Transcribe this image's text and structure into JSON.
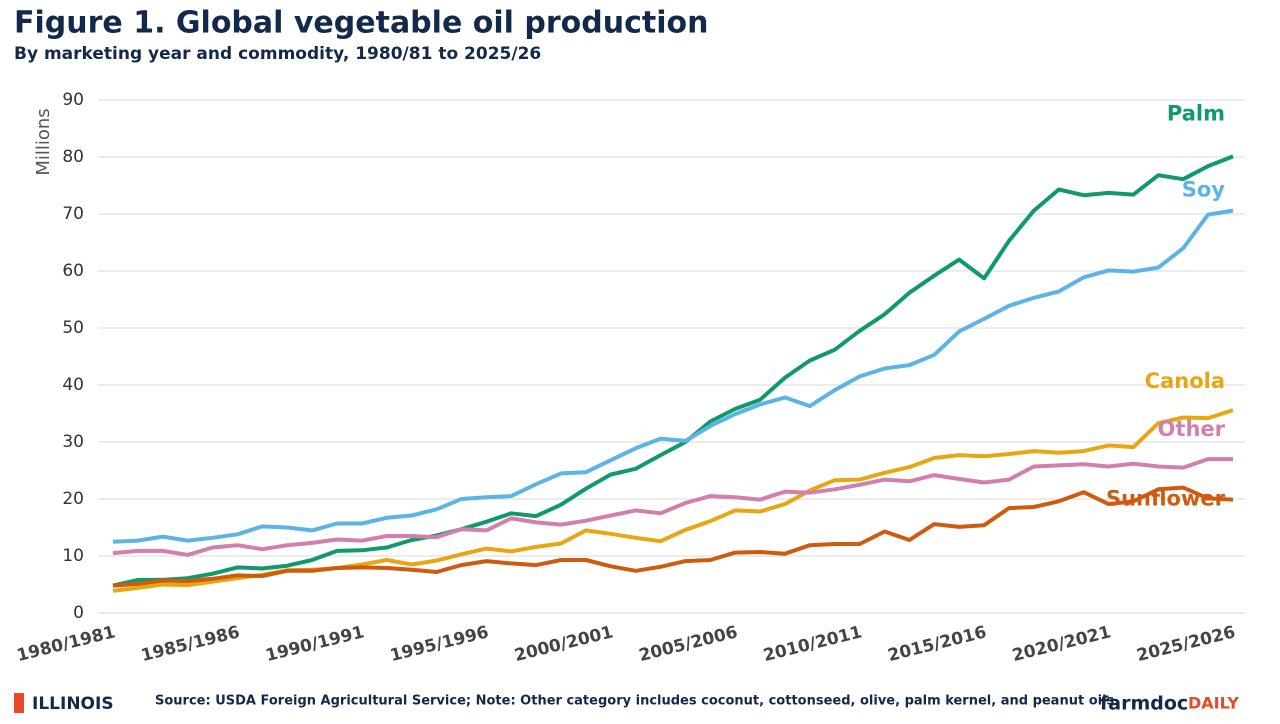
{
  "chart_data": {
    "type": "line",
    "title": "Figure 1. Global vegetable oil production",
    "subtitle": "By marketing year and commodity, 1980/81 to 2025/26",
    "y_label": "Millions",
    "categories": [
      "1980/1981",
      null,
      null,
      null,
      null,
      "1985/1986",
      null,
      null,
      null,
      null,
      "1990/1991",
      null,
      null,
      null,
      null,
      "1995/1996",
      null,
      null,
      null,
      null,
      "2000/2001",
      null,
      null,
      null,
      null,
      "2005/2006",
      null,
      null,
      null,
      null,
      "2010/2011",
      null,
      null,
      null,
      null,
      "2015/2016",
      null,
      null,
      null,
      null,
      "2020/2021",
      null,
      null,
      null,
      null,
      "2025/2026"
    ],
    "series": [
      {
        "name": "Palm",
        "color": "#0e9a6b",
        "values": [
          4.8,
          5.8,
          5.8,
          6.1,
          6.9,
          8.0,
          7.8,
          8.3,
          9.3,
          10.9,
          11.0,
          11.5,
          12.8,
          13.6,
          14.7,
          16.0,
          17.5,
          17.0,
          19.0,
          21.8,
          24.3,
          25.3,
          27.7,
          30.0,
          33.6,
          35.8,
          37.4,
          41.3,
          44.3,
          46.2,
          49.5,
          52.4,
          56.2,
          59.2,
          62.0,
          58.7,
          65.3,
          70.6,
          74.3,
          73.3,
          73.7,
          73.4,
          76.8,
          76.1,
          78.4,
          80.1
        ]
      },
      {
        "name": "Soy",
        "color": "#5bb4e5",
        "values": [
          12.5,
          12.7,
          13.4,
          12.7,
          13.2,
          13.8,
          15.2,
          15.0,
          14.5,
          15.7,
          15.7,
          16.7,
          17.1,
          18.2,
          20.0,
          20.3,
          20.5,
          22.6,
          24.5,
          24.7,
          26.8,
          28.9,
          30.6,
          30.2,
          32.8,
          34.9,
          36.6,
          37.8,
          36.3,
          39.1,
          41.5,
          42.9,
          43.5,
          45.3,
          49.4,
          51.6,
          53.9,
          55.3,
          56.4,
          58.9,
          60.1,
          59.9,
          60.6,
          64.0,
          69.9,
          70.6
        ]
      },
      {
        "name": "Canola",
        "color": "#e8a712",
        "values": [
          3.9,
          4.4,
          5.0,
          4.9,
          5.5,
          6.1,
          6.7,
          7.5,
          7.6,
          7.9,
          8.5,
          9.3,
          8.5,
          9.2,
          10.3,
          11.3,
          10.8,
          11.6,
          12.2,
          14.5,
          13.9,
          13.2,
          12.6,
          14.6,
          16.1,
          18.0,
          17.8,
          19.1,
          21.5,
          23.3,
          23.4,
          24.6,
          25.6,
          27.2,
          27.7,
          27.5,
          27.9,
          28.4,
          28.1,
          28.4,
          29.4,
          29.1,
          33.3,
          34.3,
          34.2,
          35.6
        ]
      },
      {
        "name": "Other",
        "color": "#d27fae",
        "values": [
          10.5,
          10.9,
          10.9,
          10.2,
          11.5,
          11.9,
          11.2,
          11.9,
          12.3,
          12.9,
          12.7,
          13.5,
          13.5,
          13.3,
          14.7,
          14.5,
          16.6,
          15.9,
          15.5,
          16.2,
          17.1,
          18.0,
          17.5,
          19.3,
          20.5,
          20.3,
          19.9,
          21.3,
          21.1,
          21.7,
          22.5,
          23.4,
          23.1,
          24.2,
          23.5,
          22.9,
          23.4,
          25.7,
          25.9,
          26.1,
          25.7,
          26.2,
          25.7,
          25.5,
          27.0,
          27.0
        ]
      },
      {
        "name": "Sunflower",
        "color": "#cf5b0e",
        "values": [
          4.8,
          5.1,
          5.7,
          5.6,
          6.0,
          6.6,
          6.5,
          7.4,
          7.4,
          7.9,
          8.0,
          7.9,
          7.6,
          7.2,
          8.4,
          9.1,
          8.7,
          8.4,
          9.3,
          9.3,
          8.2,
          7.4,
          8.1,
          9.1,
          9.3,
          10.6,
          10.7,
          10.4,
          11.9,
          12.1,
          12.1,
          14.3,
          12.8,
          15.6,
          15.1,
          15.4,
          18.4,
          18.6,
          19.6,
          21.2,
          19.1,
          19.6,
          21.7,
          22.0,
          20.1,
          19.9
        ]
      }
    ],
    "ylim": [
      0,
      90
    ],
    "yticks": [
      0,
      10,
      20,
      30,
      40,
      50,
      60,
      70,
      80,
      90
    ],
    "grid": true,
    "source": "Source: USDA Foreign Agricultural Service; Note: Other category includes coconut, cottonseed, olive, palm kernel, and peanut oils",
    "logo_left": "ILLINOIS",
    "logo_right": "farmdoc",
    "logo_right_suffix": "DAILY"
  }
}
